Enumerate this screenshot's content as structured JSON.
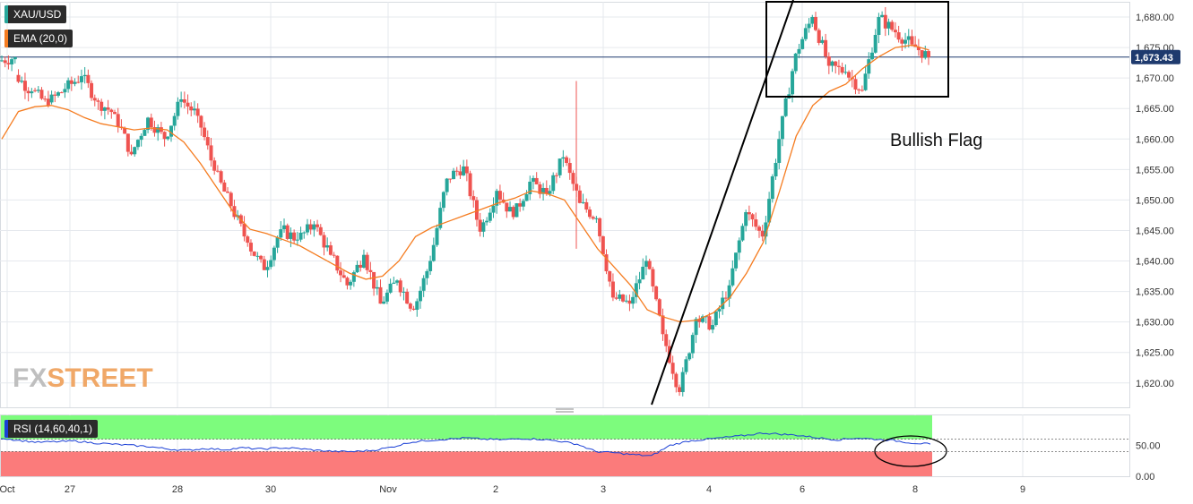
{
  "instrument_label": "XAU/USD",
  "ema_label": "EMA (20,0)",
  "rsi_label": "RSI (14,60,40,1)",
  "current_price_label": "1,673.43",
  "annotation_text": "Bullish Flag",
  "watermark": "FXSTREET",
  "colors": {
    "up": "#26a69a",
    "down": "#ef5350",
    "ema": "#f57c20",
    "rsi_line": "#1a3fd6",
    "rsi_overbought_zone": "#7dfc7d",
    "rsi_oversold_zone": "#fb7b7b",
    "price_line": "#1e3a6e",
    "grid": "#e6e9ee",
    "axis_text": "#333333",
    "badge_bg": "#2b2b2b",
    "watermark": "#bfbfbf",
    "watermark_accent": "#f0a868"
  },
  "icons": {
    "pane_divider": "drag-handle-icon"
  },
  "chart_data": [
    {
      "type": "candlestick",
      "series": [
        {
          "name": "XAU/USD"
        },
        {
          "name": "EMA (20,0)"
        }
      ],
      "y_ticks": [
        "1,680.00",
        "1,675.00",
        "1,670.00",
        "1,665.00",
        "1,660.00",
        "1,655.00",
        "1,650.00",
        "1,645.00",
        "1,640.00",
        "1,635.00",
        "1,630.00",
        "1,625.00",
        "1,620.00"
      ],
      "ylim": [
        1616,
        1682.5
      ],
      "x_ticks": [
        "Oct",
        "27",
        "28",
        "30",
        "Nov",
        "2",
        "3",
        "4",
        "6",
        "8",
        "9"
      ],
      "current_price": 1673.43,
      "ohlc_anchors": [
        [
          1672.8,
          1673.4
        ],
        [
          1670.5,
          1667.8
        ],
        [
          1668.0,
          1665.5
        ],
        [
          1666.0,
          1668.2
        ],
        [
          1668.2,
          1670.3
        ],
        [
          1670.3,
          1666.1
        ],
        [
          1666.1,
          1664.1
        ],
        [
          1664.1,
          1657.5
        ],
        [
          1657.5,
          1663.5
        ],
        [
          1663.5,
          1660.0
        ],
        [
          1660.0,
          1666.5
        ],
        [
          1666.5,
          1663.8
        ],
        [
          1663.8,
          1654.8
        ],
        [
          1654.8,
          1649.0
        ],
        [
          1649.0,
          1643.0
        ],
        [
          1643.0,
          1638.5
        ],
        [
          1638.5,
          1645.2
        ],
        [
          1645.2,
          1643.5
        ],
        [
          1643.5,
          1646.0
        ],
        [
          1646.0,
          1641.0
        ],
        [
          1641.0,
          1636.0
        ],
        [
          1636.0,
          1641.0
        ],
        [
          1641.0,
          1633.0
        ],
        [
          1633.0,
          1636.8
        ],
        [
          1636.8,
          1632.0
        ],
        [
          1632.0,
          1640.0
        ],
        [
          1640.0,
          1653.5
        ],
        [
          1653.5,
          1655.5
        ],
        [
          1655.5,
          1644.8
        ],
        [
          1644.8,
          1651.5
        ],
        [
          1651.5,
          1647.2
        ],
        [
          1647.2,
          1653.0
        ],
        [
          1653.0,
          1651.0
        ],
        [
          1651.0,
          1657.0
        ],
        [
          1657.0,
          1649.5
        ],
        [
          1649.5,
          1647.0
        ],
        [
          1647.0,
          1634.0
        ],
        [
          1634.0,
          1633.0
        ],
        [
          1633.0,
          1640.0
        ],
        [
          1640.0,
          1628.0
        ],
        [
          1628.0,
          1618.5
        ],
        [
          1618.5,
          1630.5
        ],
        [
          1630.5,
          1629.5
        ],
        [
          1629.5,
          1636.0
        ],
        [
          1636.0,
          1648.0
        ],
        [
          1648.0,
          1644.0
        ],
        [
          1644.0,
          1660.0
        ],
        [
          1660.0,
          1674.0
        ],
        [
          1674.0,
          1680.0
        ],
        [
          1680.0,
          1672.0
        ],
        [
          1672.0,
          1671.0
        ],
        [
          1671.0,
          1668.0
        ],
        [
          1668.0,
          1680.0
        ],
        [
          1680.0,
          1677.5
        ],
        [
          1677.5,
          1675.5
        ],
        [
          1675.5,
          1673.4
        ]
      ],
      "ema_anchors": [
        1660.0,
        1664.5,
        1665.3,
        1665.5,
        1664.8,
        1663.5,
        1662.5,
        1662.0,
        1661.5,
        1661.8,
        1661.5,
        1659.5,
        1656.0,
        1652.0,
        1648.0,
        1645.2,
        1644.5,
        1643.5,
        1642.5,
        1641.0,
        1639.5,
        1638.0,
        1637.0,
        1637.5,
        1640.0,
        1644.0,
        1645.5,
        1646.5,
        1647.5,
        1648.5,
        1649.5,
        1650.3,
        1651.5,
        1651.0,
        1650.0,
        1646.0,
        1642.0,
        1639.0,
        1636.0,
        1632.0,
        1630.8,
        1630.0,
        1630.3,
        1631.5,
        1634.0,
        1638.0,
        1643.0,
        1651.5,
        1660.5,
        1665.5,
        1667.8,
        1669.0,
        1671.5,
        1673.5,
        1675.0,
        1675.4,
        1674.6
      ]
    },
    {
      "type": "line",
      "series": [
        {
          "name": "RSI (14,60,40,1)"
        }
      ],
      "y_ticks": [
        "50.00",
        "0.00"
      ],
      "bands": {
        "upper": 60,
        "lower": 40
      },
      "ylim": [
        0,
        100
      ],
      "rsi_anchors": [
        62,
        58,
        55,
        56,
        57,
        54,
        52,
        50,
        48,
        44,
        42,
        45,
        43,
        46,
        44,
        46,
        45,
        42,
        40,
        40,
        42,
        47,
        55,
        58,
        60,
        62,
        60,
        59,
        61,
        60,
        57,
        52,
        40,
        38,
        35,
        33,
        50,
        57,
        60,
        63,
        66,
        70,
        68,
        66,
        62,
        59,
        62,
        60,
        58,
        54,
        52
      ]
    }
  ]
}
